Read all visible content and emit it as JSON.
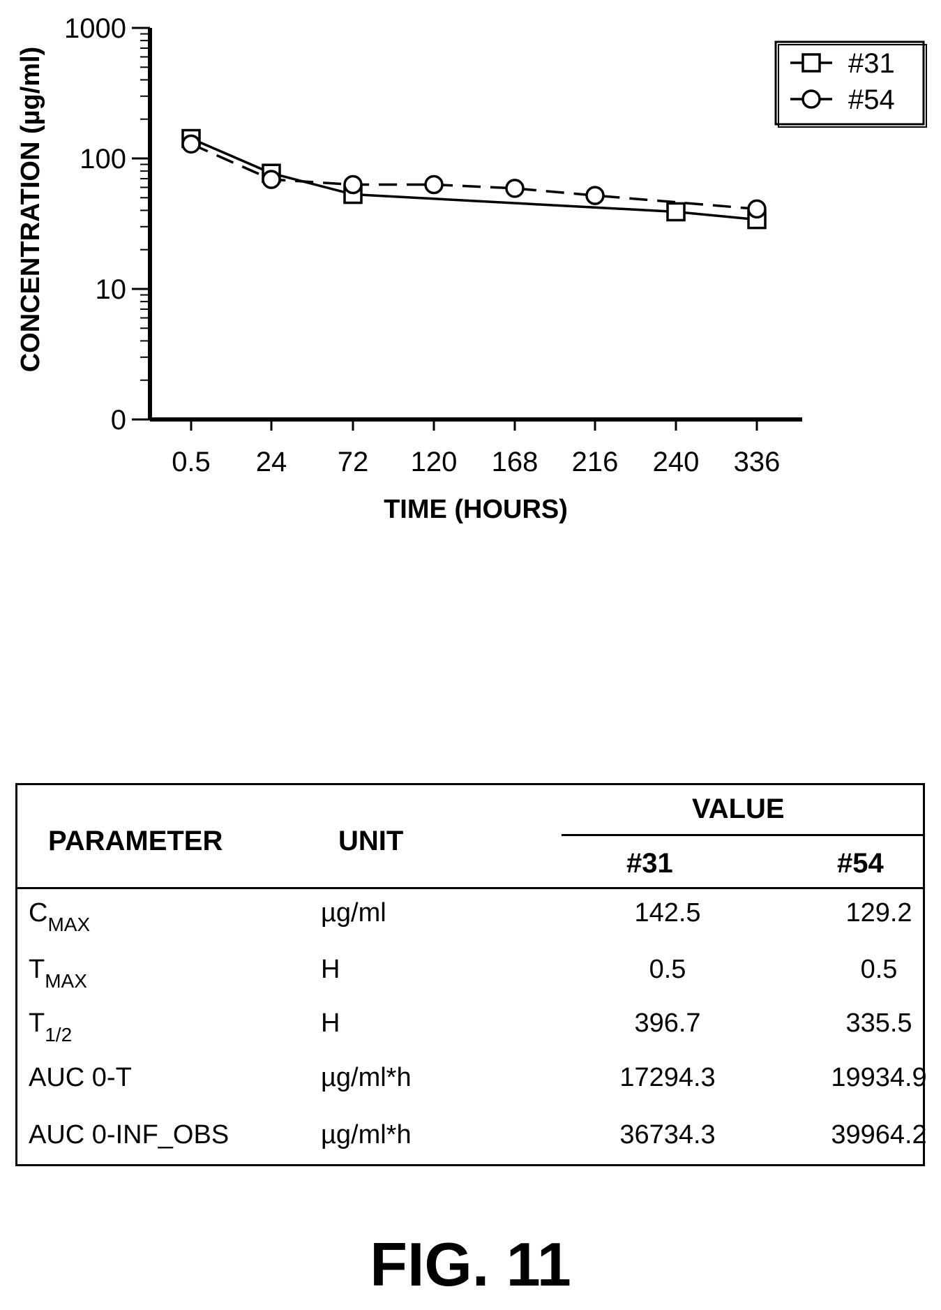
{
  "chart_data": {
    "type": "line",
    "x_axis_type": "category",
    "categories": [
      "0.5",
      "24",
      "72",
      "120",
      "168",
      "216",
      "240",
      "336"
    ],
    "xlabel": "TIME (HOURS)",
    "ylabel": "CONCENTRATION (µg/ml)",
    "y_scale": "log",
    "ylim": [
      1,
      1000
    ],
    "y_tick_labels": [
      "0",
      "10",
      "100",
      "1000"
    ],
    "y_tick_values": [
      1,
      10,
      100,
      1000
    ],
    "grid": false,
    "legend_position": "top-right",
    "series": [
      {
        "name": "#31",
        "marker": "square",
        "line_style": "solid",
        "points": [
          {
            "x": "0.5",
            "y": 142
          },
          {
            "x": "24",
            "y": 77
          },
          {
            "x": "72",
            "y": 53
          },
          {
            "x": "240",
            "y": 39
          },
          {
            "x": "336",
            "y": 34
          }
        ]
      },
      {
        "name": "#54",
        "marker": "circle",
        "line_style": "dashed",
        "points": [
          {
            "x": "0.5",
            "y": 129
          },
          {
            "x": "24",
            "y": 69
          },
          {
            "x": "72",
            "y": 63
          },
          {
            "x": "120",
            "y": 63
          },
          {
            "x": "168",
            "y": 59
          },
          {
            "x": "216",
            "y": 52
          },
          {
            "x": "336",
            "y": 41
          }
        ]
      }
    ]
  },
  "table": {
    "headers": {
      "parameter": "PARAMETER",
      "unit": "UNIT",
      "value": "VALUE",
      "col1": "#31",
      "col2": "#54"
    },
    "rows": [
      {
        "param_main": "C",
        "param_sub": "MAX",
        "unit": "µg/ml",
        "v31": "142.5",
        "v54": "129.2"
      },
      {
        "param_main": "T",
        "param_sub": "MAX",
        "unit": "H",
        "v31": "0.5",
        "v54": "0.5"
      },
      {
        "param_main": "T",
        "param_sub": "1/2",
        "unit": "H",
        "v31": "396.7",
        "v54": "335.5"
      },
      {
        "param_main": "AUC 0-T",
        "param_sub": "",
        "unit": "µg/ml*h",
        "v31": "17294.3",
        "v54": "19934.9"
      },
      {
        "param_main": "AUC 0-INF_OBS",
        "param_sub": "",
        "unit": "µg/ml*h",
        "v31": "36734.3",
        "v54": "39964.2"
      }
    ]
  },
  "figure_label": "FIG. 11"
}
